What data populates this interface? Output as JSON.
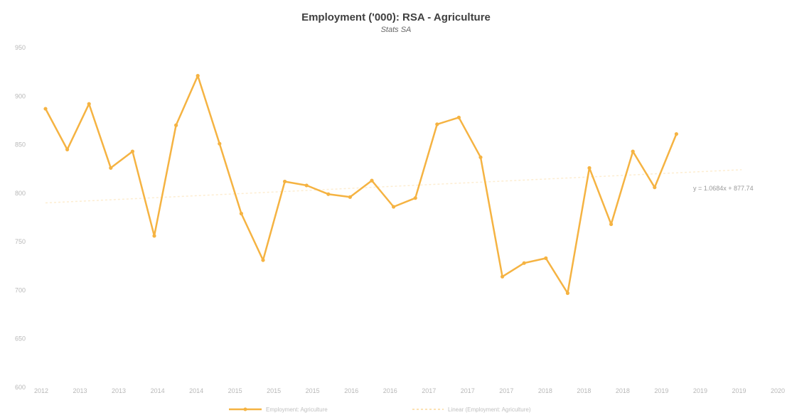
{
  "chart_data": {
    "type": "line",
    "title": "Employment ('000): RSA - Agriculture",
    "subtitle": "Stats SA",
    "x": [
      "2012",
      "2012",
      "2012",
      "2012",
      "2013",
      "2013",
      "2013",
      "2013",
      "2014",
      "2014",
      "2014",
      "2014",
      "2015",
      "2015",
      "2015",
      "2015",
      "2016",
      "2016",
      "2016",
      "2016",
      "2017",
      "2017",
      "2017",
      "2017",
      "2018",
      "2018",
      "2018",
      "2018",
      "2019",
      "2019",
      "2019"
    ],
    "series": [
      {
        "name": "Employment: Agriculture",
        "color": "#F5B342",
        "values": [
          887,
          845,
          892,
          826,
          843,
          756,
          870,
          921,
          851,
          779,
          731,
          812,
          808,
          799,
          796,
          813,
          786,
          795,
          871,
          878,
          837,
          714,
          728,
          733,
          697,
          826,
          768,
          843,
          806,
          861,
          null
        ]
      },
      {
        "name": "Linear (Employment: Agriculture)",
        "color": "#FCE2B3",
        "trend": true
      }
    ],
    "y_tick_labels": [
      "950",
      "900",
      "850",
      "800",
      "750",
      "700",
      "650",
      "600"
    ],
    "x_tick_labels": [
      "2012",
      "2013",
      "2013",
      "2014",
      "2014",
      "2015",
      "2015",
      "2015",
      "2016",
      "2016",
      "2017",
      "2017",
      "2017",
      "2018",
      "2018",
      "2018",
      "2019",
      "2019",
      "2019",
      "2020"
    ],
    "ylim": [
      600,
      950
    ],
    "equation_label": "y = 1.0684x + 877.74",
    "legend_position": "bottom",
    "grid": false
  }
}
